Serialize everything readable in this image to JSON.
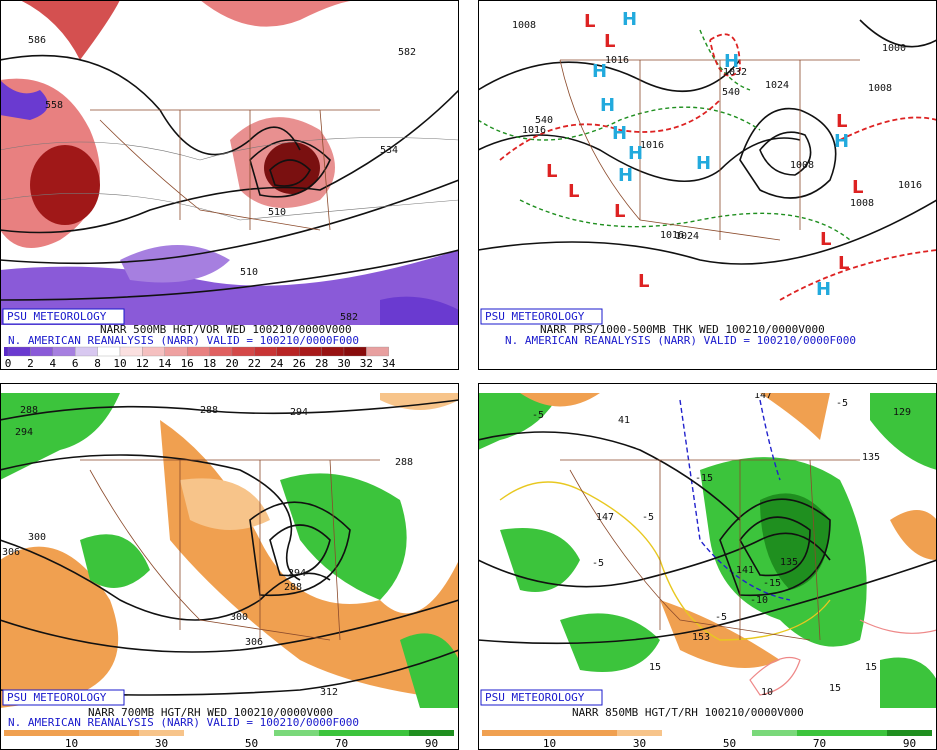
{
  "panels": [
    {
      "branding": "PSU METEOROLOGY",
      "caption_line1": "NARR 500MB HGT/VOR WED 100210/0000V000",
      "caption_line2": "N. AMERICAN REANALYSIS (NARR) VALID = 100210/0000F000",
      "colorbar_labels": [
        "0",
        "2",
        "4",
        "6",
        "8",
        "10",
        "12",
        "14",
        "16",
        "18",
        "20",
        "22",
        "24",
        "26",
        "28",
        "30",
        "32",
        "34"
      ],
      "map_labels": [
        "586",
        "582",
        "558",
        "510",
        "510",
        "582",
        "534"
      ]
    },
    {
      "branding": "PSU METEOROLOGY",
      "caption_line1": "NARR PRS/1000-500MB THK WED 100210/0000V000",
      "caption_line2": "N. AMERICAN REANALYSIS (NARR) VALID = 100210/0000F000",
      "map_labels": [
        "1008",
        "1016",
        "1032",
        "1024",
        "1016",
        "1016",
        "1008",
        "1016",
        "1008",
        "1016",
        "1024",
        "1000",
        "1008",
        "540",
        "540"
      ],
      "highs": [
        "H",
        "H",
        "H",
        "H",
        "H",
        "H",
        "H",
        "H",
        "H",
        "H"
      ],
      "lows": [
        "L",
        "L",
        "L",
        "L",
        "L",
        "L",
        "L",
        "L",
        "L",
        "L"
      ]
    },
    {
      "branding": "PSU METEOROLOGY",
      "caption_line1": "NARR 700MB HGT/RH WED 100210/0000V000",
      "caption_line2": "N. AMERICAN REANALYSIS (NARR) VALID = 100210/0000F000",
      "colorbar_labels": [
        "10",
        "30",
        "50",
        "70",
        "90"
      ],
      "map_labels": [
        "288",
        "294",
        "294",
        "288",
        "306",
        "300",
        "294",
        "288",
        "300",
        "306",
        "312",
        "288"
      ]
    },
    {
      "branding": "PSU METEOROLOGY",
      "caption_line1": "NARR 850MB HGT/T/RH 100210/0000V000",
      "colorbar_labels": [
        "10",
        "30",
        "50",
        "70",
        "90"
      ],
      "map_labels": [
        "-5",
        "41",
        "147",
        "-5",
        "129",
        "135",
        "-15",
        "-5",
        "147",
        "-5",
        "-15",
        "-10",
        "-5",
        "153",
        "15",
        "15",
        "15",
        "10",
        "141",
        "135"
      ]
    }
  ]
}
